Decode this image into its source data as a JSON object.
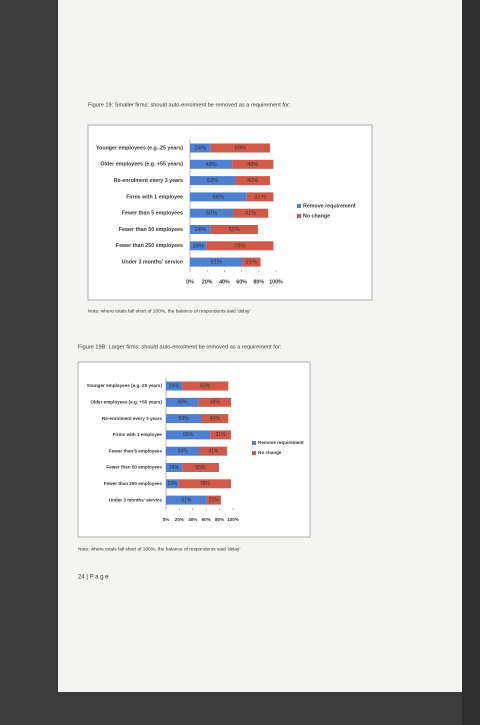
{
  "footer": "24 | P a g e",
  "chart_data": [
    {
      "type": "stacked-barh",
      "title": "Figure 19: Smaller firms: should auto-enrolment be removed as a requirement for:",
      "note": "Note: where totals fall short of 100%, the balance of respondents said 'delay'",
      "categories": [
        "Younger employees (e.g.-25 years)",
        "Older employees (e.g. +55 years)",
        "Re-enrolment every 3 years",
        "Firms with 1 employee",
        "Fewer than 5 employees",
        "Fewer than 50 employees",
        "Fewer than 250 employees",
        "Under 3 months' service"
      ],
      "series": [
        {
          "name": "Remove requirement",
          "color": "#4f7fcf",
          "values": [
            24,
            49,
            53,
            66,
            50,
            24,
            19,
            61
          ],
          "value_labels": [
            "24%",
            "49%",
            "53%",
            "66%",
            "50%",
            "24%",
            "19%",
            "61%"
          ]
        },
        {
          "name": "No change",
          "color": "#d05a4a",
          "values": [
            69,
            48,
            40,
            31,
            41,
            55,
            78,
            21
          ],
          "value_labels": [
            "69%",
            "48%",
            "40%",
            "31%",
            "41%",
            "55%",
            "78%",
            "21%"
          ]
        }
      ],
      "xlim": [
        0,
        100
      ],
      "xticks": [
        {
          "value": 0,
          "label": "0%"
        },
        {
          "value": 20,
          "label": "20%"
        },
        {
          "value": 40,
          "label": "40%"
        },
        {
          "value": 60,
          "label": "60%"
        },
        {
          "value": 80,
          "label": "80%"
        },
        {
          "value": 100,
          "label": "100%"
        }
      ],
      "legend": "right"
    },
    {
      "type": "stacked-barh",
      "title": "Figure 19B: Larger firms: should auto-enrolment be removed as a requirement for:",
      "note": "Note: where totals fall short of 100%, the balance of respondents said 'delay'",
      "categories": [
        "Younger employees (e.g.-25 years)",
        "Older employees (e.g. +55 years)",
        "Re-enrolment every 3 years",
        "Firms with 1 employee",
        "Fewer than 5 employees",
        "Fewer than 50 employees",
        "Fewer than 250 employees",
        "Under 3 months' service"
      ],
      "series": [
        {
          "name": "Remove requirement",
          "color": "#4f7fcf",
          "values": [
            24,
            49,
            53,
            66,
            50,
            24,
            19,
            61
          ],
          "value_labels": [
            "24%",
            "49%",
            "53%",
            "66%",
            "50%",
            "24%",
            "19%",
            "61%"
          ]
        },
        {
          "name": "No change",
          "color": "#d05a4a",
          "values": [
            69,
            48,
            40,
            31,
            41,
            55,
            78,
            21
          ],
          "value_labels": [
            "69%",
            "48%",
            "40%",
            "31%",
            "41%",
            "55%",
            "78%",
            "21%"
          ]
        }
      ],
      "xlim": [
        0,
        100
      ],
      "xticks": [
        {
          "value": 0,
          "label": "0%"
        },
        {
          "value": 20,
          "label": "20%"
        },
        {
          "value": 40,
          "label": "40%"
        },
        {
          "value": 60,
          "label": "60%"
        },
        {
          "value": 80,
          "label": "80%"
        },
        {
          "value": 100,
          "label": "100%"
        }
      ],
      "legend": "right"
    }
  ]
}
